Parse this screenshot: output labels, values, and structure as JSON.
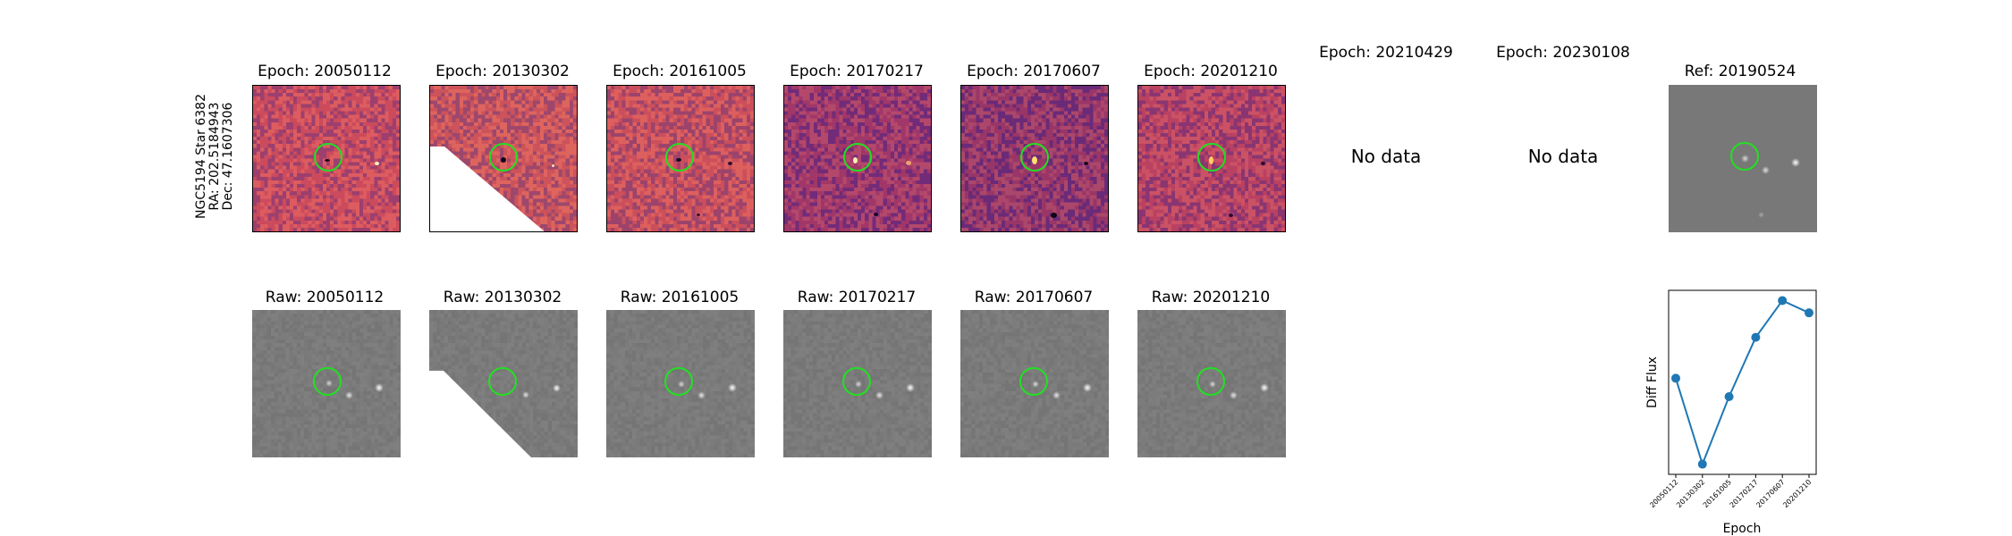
{
  "row_label": {
    "line1": "NGC5194 Star 6382",
    "line2": "RA: 202.5184943",
    "line3": "Dec: 47.1607306"
  },
  "diff_titles": [
    "Epoch: 20050112",
    "Epoch: 20130302",
    "Epoch: 20161005",
    "Epoch: 20170217",
    "Epoch: 20170607",
    "Epoch: 20201210",
    "Epoch: 20210429",
    "Epoch: 20230108"
  ],
  "raw_titles": [
    "Raw: 20050112",
    "Raw: 20130302",
    "Raw: 20161005",
    "Raw: 20170217",
    "Raw: 20170607",
    "Raw: 20201210"
  ],
  "no_data_text": "No data",
  "ref_title": "Ref: 20190524",
  "colors": {
    "ring": "#22e022",
    "series": "#1f77b4",
    "diff_palette": [
      "#e06060",
      "#c0405a",
      "#6a2a78"
    ]
  },
  "chart_data": {
    "type": "line",
    "xlabel": "Epoch",
    "ylabel": "Diff Flux",
    "categories": [
      "20050112",
      "20130302",
      "20161005",
      "20170217",
      "20170607",
      "20201210"
    ],
    "values": [
      0.62,
      0.2,
      0.53,
      0.82,
      1.0,
      0.94
    ],
    "ylim": [
      0.15,
      1.05
    ],
    "grid": false
  }
}
